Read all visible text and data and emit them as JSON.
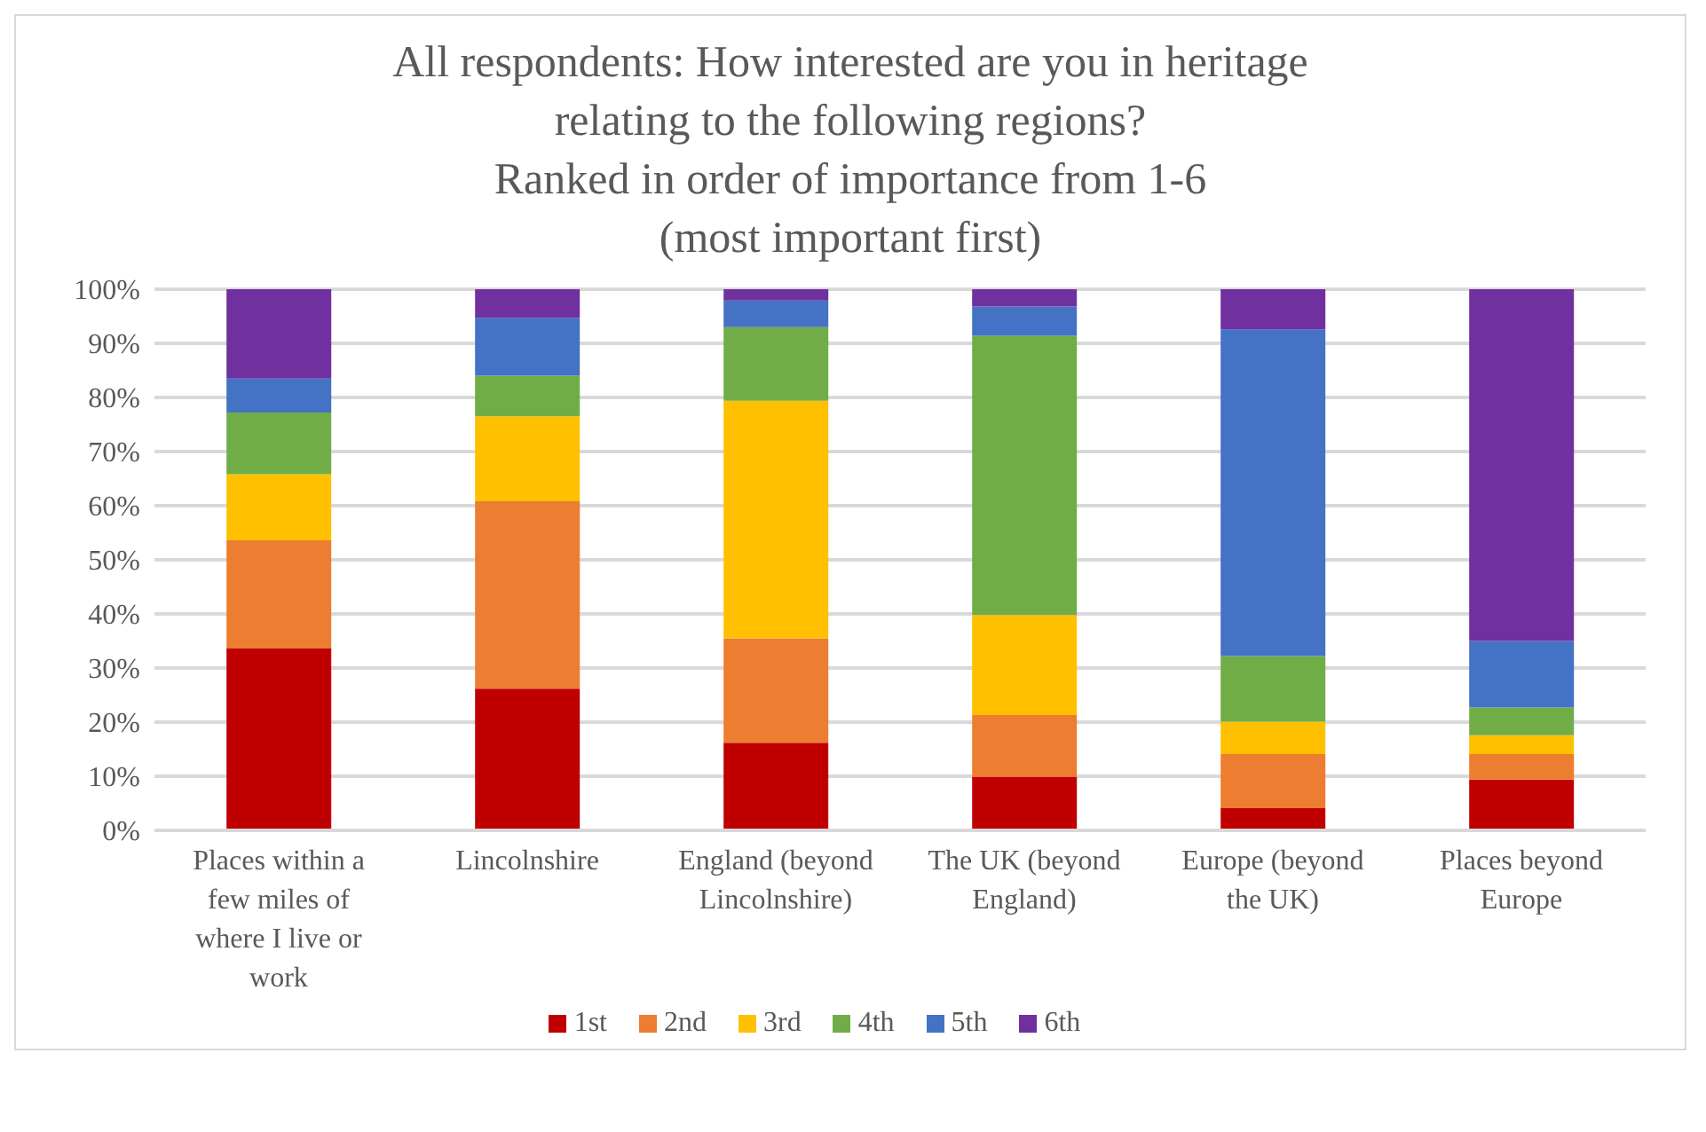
{
  "chart_data": {
    "type": "bar",
    "stacked": true,
    "title": "All respondents: How interested are you in heritage\nrelating to the following regions?\nRanked in order of importance from 1-6\n(most important first)",
    "categories": [
      "Places within a few miles of where I live or work",
      "Lincolnshire",
      "England (beyond Lincolnshire)",
      "The UK (beyond England)",
      "Europe (beyond the UK)",
      "Places beyond Europe"
    ],
    "series": [
      {
        "name": "1st",
        "color": "#c00000",
        "values": [
          33.7,
          26.2,
          16.2,
          9.9,
          4.1,
          9.4
        ]
      },
      {
        "name": "2nd",
        "color": "#ed7d31",
        "values": [
          19.9,
          34.6,
          19.3,
          11.4,
          10.0,
          4.7
        ]
      },
      {
        "name": "3rd",
        "color": "#ffc000",
        "values": [
          12.2,
          15.7,
          43.9,
          18.5,
          6.0,
          3.5
        ]
      },
      {
        "name": "4th",
        "color": "#70ad47",
        "values": [
          11.4,
          7.5,
          13.6,
          51.6,
          12.1,
          5.1
        ]
      },
      {
        "name": "5th",
        "color": "#4472c4",
        "values": [
          6.3,
          10.7,
          4.9,
          5.4,
          60.4,
          12.3
        ]
      },
      {
        "name": "6th",
        "color": "#7030a0",
        "values": [
          16.5,
          5.3,
          2.1,
          3.2,
          7.4,
          65.0
        ]
      }
    ],
    "ylim": [
      0,
      100
    ],
    "yticks": [
      {
        "value": 0,
        "label": "0%"
      },
      {
        "value": 10,
        "label": "10%"
      },
      {
        "value": 20,
        "label": "20%"
      },
      {
        "value": 30,
        "label": "30%"
      },
      {
        "value": 40,
        "label": "40%"
      },
      {
        "value": 50,
        "label": "50%"
      },
      {
        "value": 60,
        "label": "60%"
      },
      {
        "value": 70,
        "label": "70%"
      },
      {
        "value": 80,
        "label": "80%"
      },
      {
        "value": 90,
        "label": "90%"
      },
      {
        "value": 100,
        "label": "100%"
      }
    ],
    "grid": "y",
    "legend": "bottom"
  }
}
